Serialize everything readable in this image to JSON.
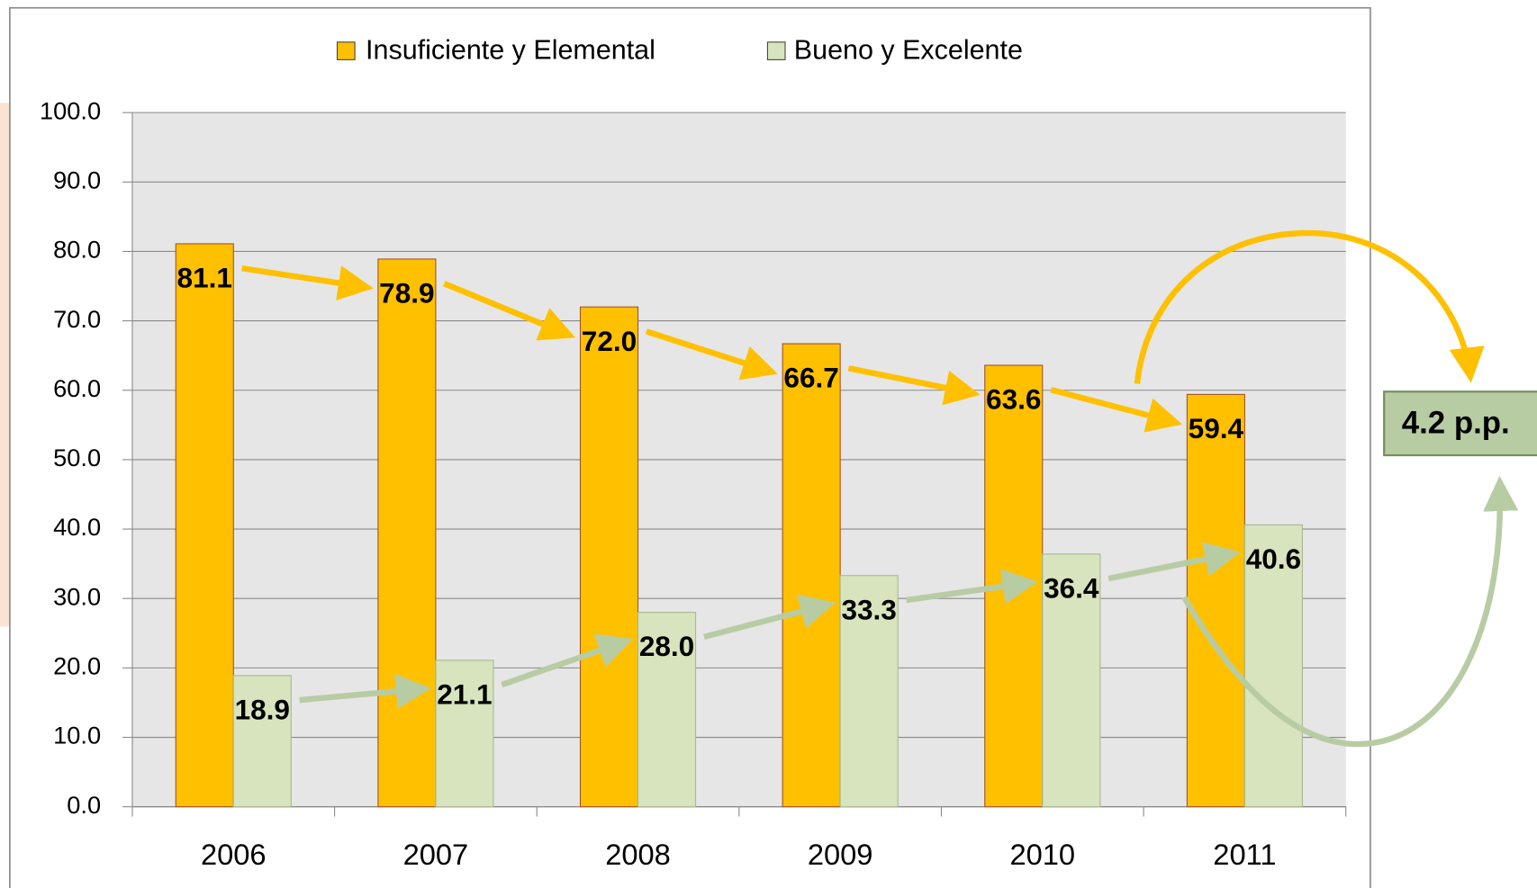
{
  "chart_data": {
    "type": "bar",
    "categories": [
      "2006",
      "2007",
      "2008",
      "2009",
      "2010",
      "2011"
    ],
    "series": [
      {
        "name": "Insuficiente y Elemental",
        "color": "#FFC000",
        "values": [
          81.1,
          78.9,
          72.0,
          66.7,
          63.6,
          59.4
        ],
        "value_labels": [
          "81.1",
          "78.9",
          "72.0",
          "66.7",
          "63.6",
          "59.4"
        ]
      },
      {
        "name": "Bueno y Excelente",
        "color": "#D7E4BD",
        "values": [
          18.9,
          21.1,
          28.0,
          33.3,
          36.4,
          40.6
        ],
        "value_labels": [
          "18.9",
          "21.1",
          "28.0",
          "33.3",
          "36.4",
          "40.6"
        ]
      }
    ],
    "ylim": [
      0,
      100
    ],
    "yticks": [
      {
        "value": 0,
        "label": "0.0"
      },
      {
        "value": 10,
        "label": "10.0"
      },
      {
        "value": 20,
        "label": "20.0"
      },
      {
        "value": 30,
        "label": "30.0"
      },
      {
        "value": 40,
        "label": "40.0"
      },
      {
        "value": 50,
        "label": "50.0"
      },
      {
        "value": 60,
        "label": "60.0"
      },
      {
        "value": 70,
        "label": "70.0"
      },
      {
        "value": 80,
        "label": "80.0"
      },
      {
        "value": 90,
        "label": "90.0"
      },
      {
        "value": 100,
        "label": "100.0"
      }
    ],
    "grid": true,
    "legend": "top",
    "annotation": "4.2 p.p."
  }
}
